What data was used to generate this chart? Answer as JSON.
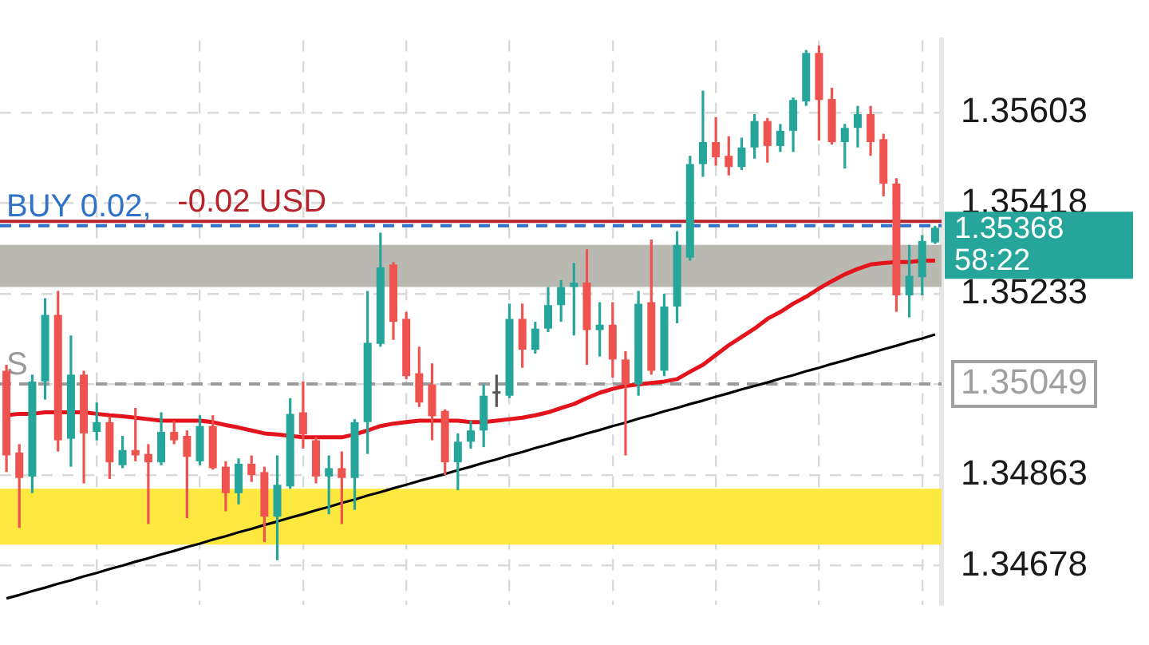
{
  "chart_data": {
    "type": "candlestick",
    "categories": [
      null,
      null,
      null,
      null,
      null,
      null,
      null,
      null,
      null,
      null,
      null,
      null,
      null,
      null,
      null,
      null,
      null,
      null,
      null,
      null,
      null,
      null,
      null,
      null,
      null,
      null,
      null,
      null,
      null,
      null,
      null,
      null,
      null,
      null,
      null,
      null,
      null,
      null,
      null,
      null,
      null,
      null,
      null,
      null,
      null,
      null,
      null,
      null,
      null,
      null,
      null,
      null,
      null,
      null,
      null,
      null,
      null,
      null,
      null,
      null,
      null,
      null,
      null,
      null,
      null,
      null,
      null,
      null,
      null,
      null,
      null,
      null,
      null
    ],
    "ohlc": [
      [
        1.35076,
        1.35088,
        1.34869,
        1.34903
      ],
      [
        1.34909,
        1.34926,
        1.34755,
        1.34857
      ],
      [
        1.3486,
        1.35068,
        1.34826,
        1.35054
      ],
      [
        1.35054,
        1.35224,
        1.35017,
        1.3519
      ],
      [
        1.3519,
        1.35239,
        1.34911,
        1.34934
      ],
      [
        1.34937,
        1.35148,
        1.3488,
        1.35068
      ],
      [
        1.35068,
        1.35076,
        1.34846,
        1.34948
      ],
      [
        1.34951,
        1.35011,
        1.34934,
        1.34971
      ],
      [
        1.34971,
        1.34983,
        1.34855,
        1.34889
      ],
      [
        1.34883,
        1.34943,
        1.34877,
        1.34914
      ],
      [
        1.34914,
        1.35,
        1.34891,
        1.34903
      ],
      [
        1.34906,
        1.34926,
        1.34763,
        1.34889
      ],
      [
        1.34889,
        1.34991,
        1.34883,
        1.34951
      ],
      [
        1.34951,
        1.34974,
        1.34926,
        1.34934
      ],
      [
        1.34943,
        1.34954,
        1.34775,
        1.349
      ],
      [
        1.34891,
        1.34985,
        1.34883,
        1.34963
      ],
      [
        1.34963,
        1.34985,
        1.34874,
        1.34877
      ],
      [
        1.3488,
        1.34891,
        1.34789,
        1.34826
      ],
      [
        1.34826,
        1.34897,
        1.34803,
        1.34886
      ],
      [
        1.34886,
        1.34903,
        1.34849,
        1.34863
      ],
      [
        1.34869,
        1.3488,
        1.34726,
        1.34778
      ],
      [
        1.34778,
        1.34903,
        1.34689,
        1.34843
      ],
      [
        1.3484,
        1.3502,
        1.34835,
        1.34988
      ],
      [
        1.34991,
        1.35054,
        1.34917,
        1.34946
      ],
      [
        1.34934,
        1.3494,
        1.34846,
        1.3486
      ],
      [
        1.3486,
        1.34903,
        1.34783,
        1.34877
      ],
      [
        1.34877,
        1.34911,
        1.34763,
        1.34857
      ],
      [
        1.34857,
        1.34977,
        1.34792,
        1.34971
      ],
      [
        1.34971,
        1.35239,
        1.34906,
        1.35133
      ],
      [
        1.35131,
        1.35358,
        1.35125,
        1.35287
      ],
      [
        1.35293,
        1.35298,
        1.35139,
        1.35176
      ],
      [
        1.35182,
        1.35196,
        1.35059,
        1.35065
      ],
      [
        1.35071,
        1.35125,
        1.35002,
        1.35011
      ],
      [
        1.35048,
        1.35091,
        1.34934,
        1.34983
      ],
      [
        1.34994,
        1.34997,
        1.34863,
        1.34889
      ],
      [
        1.34889,
        1.34948,
        1.34832,
        1.34931
      ],
      [
        1.34931,
        1.34974,
        1.34917,
        1.34954
      ],
      [
        1.34954,
        1.35048,
        1.3492,
        1.35025
      ],
      [
        1.35031,
        1.35068,
        1.35002,
        1.35034
      ],
      [
        1.35025,
        1.35213,
        1.3502,
        1.35182
      ],
      [
        1.35182,
        1.35213,
        1.35082,
        1.35119
      ],
      [
        1.35119,
        1.35176,
        1.35111,
        1.35162
      ],
      [
        1.35162,
        1.35247,
        1.35155,
        1.3521
      ],
      [
        1.3521,
        1.35261,
        1.35176,
        1.35247
      ],
      [
        1.35247,
        1.35296,
        1.35148,
        1.35256
      ],
      [
        1.35256,
        1.35324,
        1.35088,
        1.35159
      ],
      [
        1.35159,
        1.35216,
        1.35105,
        1.3517
      ],
      [
        1.3517,
        1.35216,
        1.35062,
        1.35099
      ],
      [
        1.35099,
        1.35116,
        1.34903,
        1.35048
      ],
      [
        1.35048,
        1.35239,
        1.35025,
        1.35213
      ],
      [
        1.35216,
        1.35344,
        1.35068,
        1.35076
      ],
      [
        1.35076,
        1.35233,
        1.35065,
        1.35207
      ],
      [
        1.35207,
        1.35361,
        1.35173,
        1.35333
      ],
      [
        1.35307,
        1.35515,
        1.35301,
        1.35498
      ],
      [
        1.35498,
        1.35648,
        1.35472,
        1.35543
      ],
      [
        1.35543,
        1.35594,
        1.35495,
        1.35512
      ],
      [
        1.35515,
        1.35555,
        1.35475,
        1.35492
      ],
      [
        1.35492,
        1.35552,
        1.35486,
        1.35532
      ],
      [
        1.35532,
        1.356,
        1.35509,
        1.35586
      ],
      [
        1.35586,
        1.35592,
        1.35501,
        1.35535
      ],
      [
        1.35535,
        1.3558,
        1.35523,
        1.35566
      ],
      [
        1.35566,
        1.35634,
        1.35523,
        1.35629
      ],
      [
        1.35626,
        1.35731,
        1.35617,
        1.35725
      ],
      [
        1.35725,
        1.3574,
        1.35546,
        1.35629
      ],
      [
        1.35631,
        1.35654,
        1.35538,
        1.35543
      ],
      [
        1.35543,
        1.3558,
        1.35489,
        1.35572
      ],
      [
        1.35572,
        1.35617,
        1.35532,
        1.356
      ],
      [
        1.356,
        1.35617,
        1.35515,
        1.35543
      ],
      [
        1.35549,
        1.3556,
        1.35432,
        1.35458
      ],
      [
        1.35458,
        1.35469,
        1.35196,
        1.3523
      ],
      [
        1.3523,
        1.35333,
        1.35185,
        1.3527
      ],
      [
        1.35267,
        1.35353,
        1.3523,
        1.35341
      ],
      [
        1.35338,
        1.35372,
        1.35335,
        1.35368
      ]
    ],
    "colors": [
      "#ef5350",
      "#ef5350",
      "#26a69a",
      "#26a69a",
      "#ef5350",
      "#26a69a",
      "#ef5350",
      "#26a69a",
      "#ef5350",
      "#26a69a",
      "#ef5350",
      "#ef5350",
      "#26a69a",
      "#ef5350",
      "#ef5350",
      "#26a69a",
      "#ef5350",
      "#ef5350",
      "#26a69a",
      "#ef5350",
      "#ef5350",
      "#26a69a",
      "#26a69a",
      "#ef5350",
      "#ef5350",
      "#26a69a",
      "#ef5350",
      "#26a69a",
      "#26a69a",
      "#26a69a",
      "#ef5350",
      "#ef5350",
      "#ef5350",
      "#ef5350",
      "#ef5350",
      "#26a69a",
      "#26a69a",
      "#26a69a",
      "#555555",
      "#26a69a",
      "#ef5350",
      "#26a69a",
      "#26a69a",
      "#26a69a",
      "#26a69a",
      "#ef5350",
      "#26a69a",
      "#ef5350",
      "#ef5350",
      "#26a69a",
      "#ef5350",
      "#26a69a",
      "#26a69a",
      "#26a69a",
      "#26a69a",
      "#ef5350",
      "#ef5350",
      "#26a69a",
      "#26a69a",
      "#ef5350",
      "#26a69a",
      "#26a69a",
      "#26a69a",
      "#ef5350",
      "#ef5350",
      "#26a69a",
      "#26a69a",
      "#ef5350",
      "#ef5350",
      "#ef5350",
      "#26a69a",
      "#26a69a",
      "#26a69a"
    ],
    "series": [
      {
        "type": "line",
        "color": "#e3141b",
        "values": [
          1.34985,
          1.34988,
          1.34988,
          1.34991,
          1.34991,
          1.34991,
          1.34991,
          1.34988,
          1.34985,
          1.34983,
          1.3498,
          1.34977,
          1.34974,
          1.34974,
          1.34974,
          1.34974,
          1.34971,
          1.34965,
          1.3496,
          1.34954,
          1.34948,
          1.34946,
          1.34943,
          1.3494,
          1.3494,
          1.3494,
          1.3494,
          1.34946,
          1.34954,
          1.34963,
          1.34968,
          1.34971,
          1.34974,
          1.34974,
          1.34974,
          1.34974,
          1.34971,
          1.34971,
          1.34974,
          1.34977,
          1.3498,
          1.34985,
          1.34991,
          1.35,
          1.35008,
          1.3502,
          1.35031,
          1.35039,
          1.35045,
          1.35048,
          1.35051,
          1.35054,
          1.35059,
          1.35074,
          1.35088,
          1.35108,
          1.35128,
          1.35145,
          1.35162,
          1.35182,
          1.35196,
          1.35213,
          1.35227,
          1.35244,
          1.35259,
          1.35273,
          1.35284,
          1.35293,
          1.35296,
          1.35298,
          1.35298,
          1.35301,
          1.35301
        ]
      },
      {
        "type": "line",
        "color": "#000000",
        "values": [
          1.34611,
          1.34618,
          1.34626,
          1.34633,
          1.34641,
          1.34648,
          1.34656,
          1.34663,
          1.34671,
          1.34678,
          1.34686,
          1.34693,
          1.34701,
          1.34708,
          1.34716,
          1.34723,
          1.34731,
          1.34738,
          1.34746,
          1.34753,
          1.34761,
          1.34768,
          1.34776,
          1.34783,
          1.34791,
          1.34798,
          1.34806,
          1.34813,
          1.34821,
          1.34828,
          1.34836,
          1.34843,
          1.34851,
          1.34858,
          1.34865,
          1.34873,
          1.3488,
          1.34888,
          1.34895,
          1.34903,
          1.3491,
          1.34918,
          1.34925,
          1.34933,
          1.3494,
          1.34948,
          1.34955,
          1.34963,
          1.3497,
          1.34978,
          1.34985,
          1.34993,
          1.35,
          1.35008,
          1.35015,
          1.35023,
          1.3503,
          1.35038,
          1.35045,
          1.35052,
          1.3506,
          1.35067,
          1.35075,
          1.35082,
          1.3509,
          1.35097,
          1.35105,
          1.35112,
          1.3512,
          1.35127,
          1.35135,
          1.35142,
          1.3515
        ]
      }
    ],
    "ylim": [
      1.34598,
      1.35751
    ],
    "yticks": [
      1.35603,
      1.35418,
      1.35233,
      1.35049,
      1.34863,
      1.34678
    ],
    "tick_labels": "y",
    "grid": true,
    "bands": [
      {
        "axis": "y",
        "from": 1.35247,
        "to": 1.35333,
        "color": "#b9b8b1"
      },
      {
        "axis": "y",
        "from": 1.34721,
        "to": 1.34835,
        "color": "#fde83f"
      }
    ],
    "ref_lines": [
      {
        "axis": "y",
        "value": 1.35372,
        "label": "BUY 0.02,",
        "color": "#2f72c8",
        "line_style": "dashed"
      },
      {
        "axis": "y",
        "value": 1.35381,
        "label": "-0.02 USD",
        "color": "#b7232a",
        "line_style": "solid"
      },
      {
        "axis": "y",
        "value": 1.35049,
        "label": "S",
        "color": "#9a9a9a",
        "line_style": "dashed"
      }
    ],
    "annotations": [
      "1.35368",
      "58:22"
    ]
  }
}
